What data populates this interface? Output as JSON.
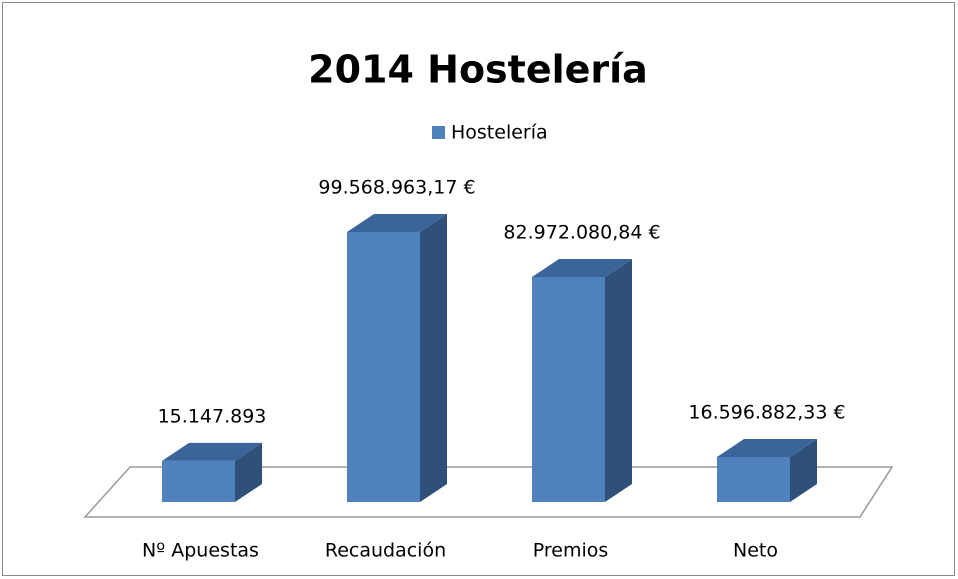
{
  "chart_data": {
    "type": "bar3d",
    "title": "2014 Hostelería",
    "categories": [
      "Nº Apuestas",
      "Recaudación",
      "Premios",
      "Neto"
    ],
    "series": [
      {
        "name": "Hostelería",
        "color": "#4f81bd",
        "values": [
          15147893,
          99568963.17,
          82972080.84,
          16596882.33
        ],
        "value_labels": [
          "15.147.893",
          "99.568.963,17 €",
          "82.972.080,84 €",
          "16.596.882,33 €"
        ]
      }
    ],
    "legend": "top"
  }
}
